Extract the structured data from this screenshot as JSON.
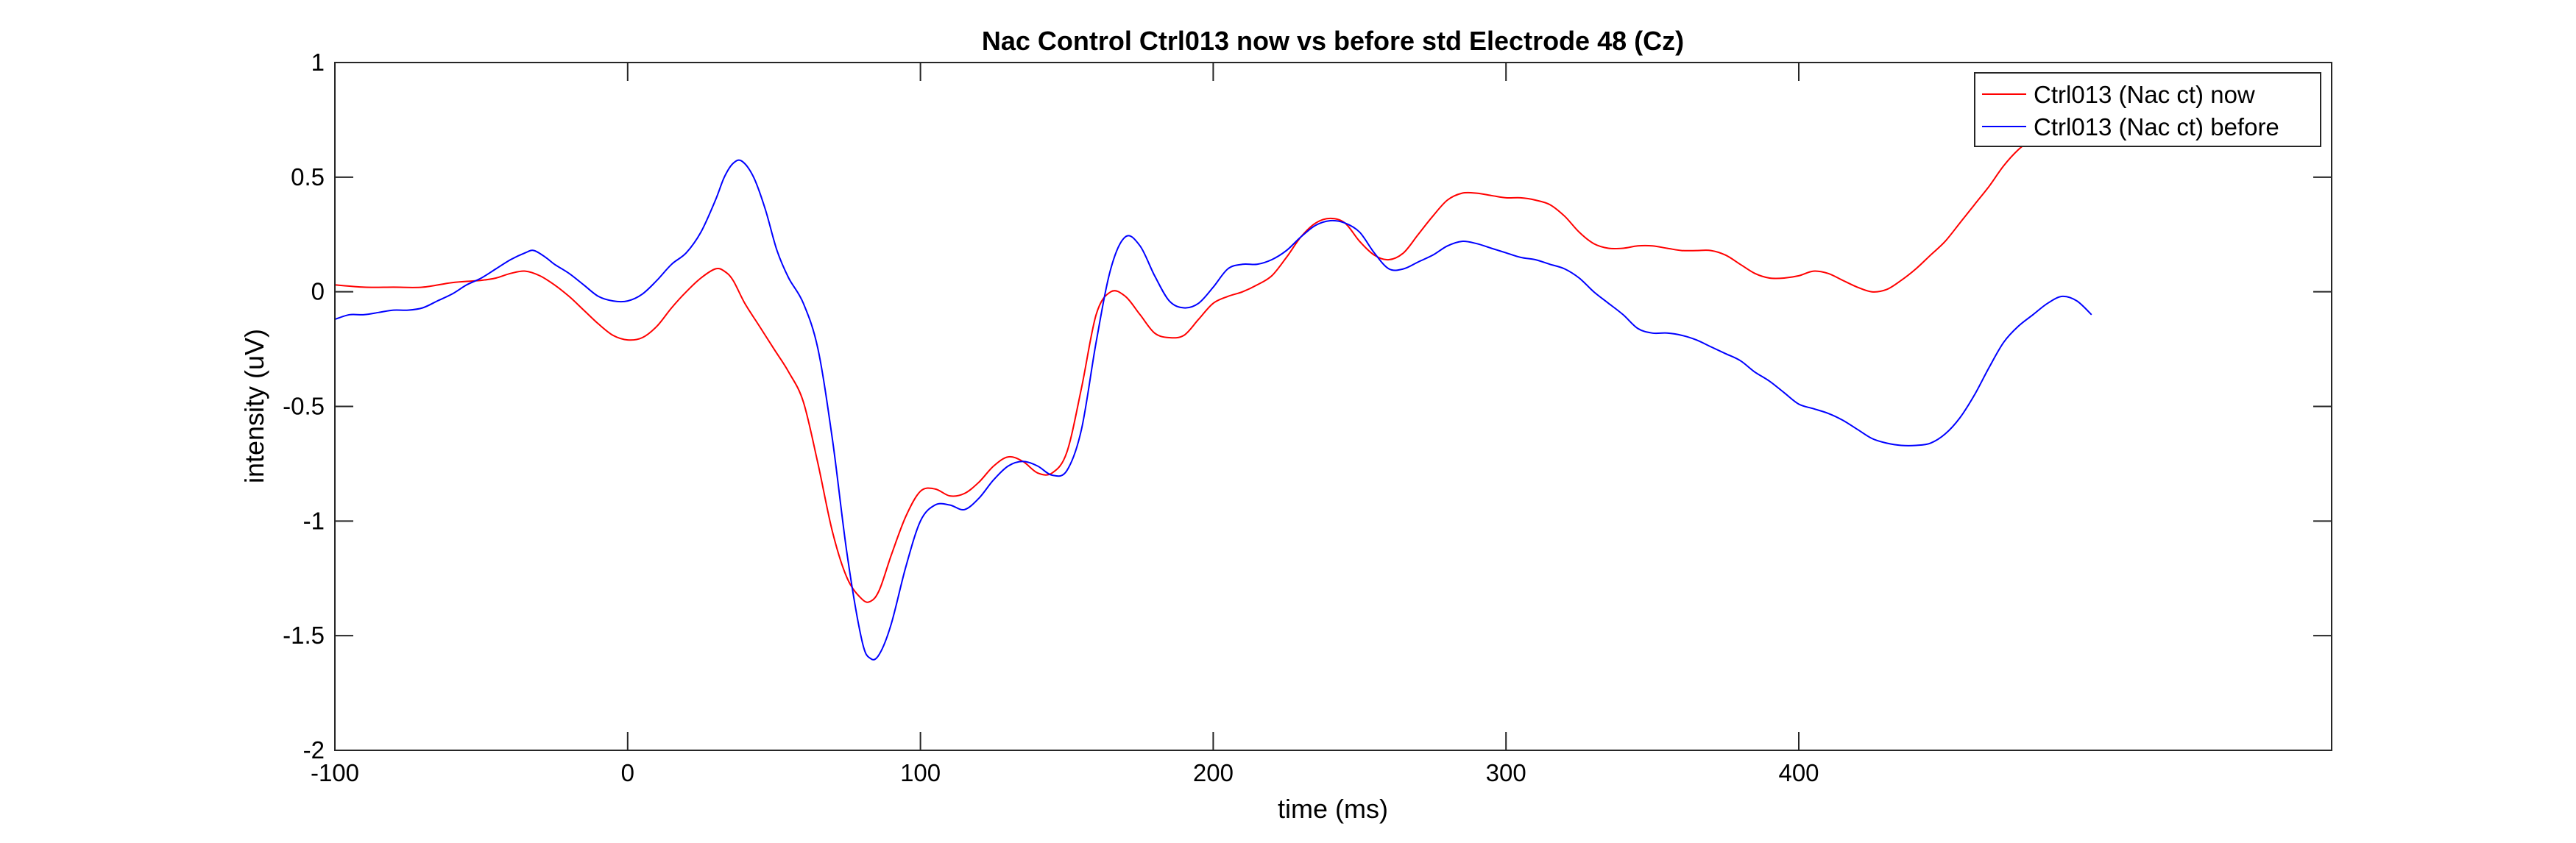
{
  "chart_data": {
    "type": "line",
    "title": "Nac Control Ctrl013 now vs before std Electrode 48 (Cz)",
    "xlabel": "time (ms)",
    "ylabel": "intensity (uV)",
    "xlim": [
      -100,
      582
    ],
    "ylim": [
      -2,
      1
    ],
    "xticks": [
      -100,
      0,
      100,
      200,
      300,
      400
    ],
    "xtick_labels": [
      "-100",
      "0",
      "100",
      "200",
      "300",
      "400"
    ],
    "yticks": [
      1,
      0.5,
      0,
      -0.5,
      -1,
      -1.5,
      -2
    ],
    "ytick_labels": [
      "1",
      "0.5",
      "0",
      "-0.5",
      "-1",
      "-1.5",
      "-2"
    ],
    "grid": false,
    "legend_position": "top-right",
    "series": [
      {
        "name": "Ctrl013 (Nac ct) now",
        "color": "#ff0000",
        "x": [
          -100,
          -90,
          -80,
          -70,
          -60,
          -50,
          -45,
          -40,
          -35,
          -30,
          -25,
          -20,
          -15,
          -10,
          -5,
          0,
          5,
          10,
          15,
          20,
          25,
          30,
          33,
          36,
          40,
          45,
          50,
          55,
          60,
          65,
          70,
          75,
          80,
          83,
          86,
          90,
          95,
          100,
          105,
          110,
          115,
          120,
          125,
          130,
          135,
          140,
          145,
          150,
          155,
          160,
          165,
          170,
          175,
          180,
          185,
          190,
          195,
          200,
          205,
          210,
          215,
          220,
          225,
          230,
          235,
          240,
          245,
          250,
          255,
          260,
          265,
          270,
          275,
          280,
          285,
          290,
          295,
          300,
          305,
          310,
          315,
          320,
          325,
          330,
          335,
          340,
          345,
          350,
          355,
          360,
          365,
          370,
          375,
          380,
          385,
          390,
          395,
          400,
          405,
          410,
          415,
          420,
          425,
          430,
          435,
          440,
          445,
          450,
          455,
          460,
          465,
          470,
          475,
          480
        ],
        "y": [
          0.03,
          0.02,
          0.02,
          0.02,
          0.04,
          0.05,
          0.06,
          0.08,
          0.09,
          0.07,
          0.03,
          -0.02,
          -0.08,
          -0.14,
          -0.19,
          -0.21,
          -0.2,
          -0.15,
          -0.07,
          0.0,
          0.06,
          0.1,
          0.09,
          0.05,
          -0.05,
          -0.15,
          -0.25,
          -0.35,
          -0.48,
          -0.75,
          -1.05,
          -1.25,
          -1.34,
          -1.35,
          -1.3,
          -1.15,
          -0.98,
          -0.87,
          -0.86,
          -0.89,
          -0.88,
          -0.83,
          -0.76,
          -0.72,
          -0.74,
          -0.79,
          -0.79,
          -0.7,
          -0.42,
          -0.1,
          0.0,
          -0.02,
          -0.1,
          -0.18,
          -0.2,
          -0.19,
          -0.12,
          -0.05,
          -0.02,
          0.0,
          0.03,
          0.07,
          0.15,
          0.24,
          0.3,
          0.32,
          0.3,
          0.22,
          0.16,
          0.14,
          0.17,
          0.25,
          0.33,
          0.4,
          0.43,
          0.43,
          0.42,
          0.41,
          0.41,
          0.4,
          0.38,
          0.33,
          0.26,
          0.21,
          0.19,
          0.19,
          0.2,
          0.2,
          0.19,
          0.18,
          0.18,
          0.18,
          0.16,
          0.12,
          0.08,
          0.06,
          0.06,
          0.07,
          0.09,
          0.08,
          0.05,
          0.02,
          0.0,
          0.01,
          0.05,
          0.1,
          0.16,
          0.22,
          0.3,
          0.38,
          0.46,
          0.55,
          0.62,
          0.67
        ]
      },
      {
        "name": "Ctrl013 (Nac ct) before",
        "color": "#0000ff",
        "x": [
          -100,
          -95,
          -90,
          -85,
          -80,
          -75,
          -70,
          -65,
          -60,
          -55,
          -50,
          -45,
          -40,
          -35,
          -32,
          -28,
          -25,
          -20,
          -15,
          -10,
          -5,
          0,
          5,
          10,
          15,
          20,
          25,
          30,
          33,
          36,
          39,
          43,
          47,
          51,
          55,
          60,
          65,
          70,
          75,
          80,
          83,
          86,
          90,
          95,
          100,
          105,
          110,
          115,
          120,
          125,
          130,
          135,
          140,
          145,
          150,
          155,
          160,
          165,
          170,
          175,
          180,
          185,
          190,
          195,
          200,
          205,
          210,
          215,
          220,
          225,
          230,
          235,
          240,
          245,
          250,
          255,
          260,
          265,
          270,
          275,
          280,
          285,
          290,
          295,
          300,
          305,
          310,
          315,
          320,
          325,
          330,
          335,
          340,
          345,
          350,
          355,
          360,
          365,
          370,
          375,
          380,
          385,
          390,
          395,
          400,
          405,
          410,
          415,
          420,
          425,
          430,
          435,
          440,
          445,
          450,
          455,
          460,
          465,
          470,
          475,
          480,
          485,
          490,
          495,
          500
        ],
        "y": [
          -0.12,
          -0.1,
          -0.1,
          -0.09,
          -0.08,
          -0.08,
          -0.07,
          -0.04,
          -0.01,
          0.03,
          0.06,
          0.1,
          0.14,
          0.17,
          0.18,
          0.15,
          0.12,
          0.08,
          0.03,
          -0.02,
          -0.04,
          -0.04,
          -0.01,
          0.05,
          0.12,
          0.17,
          0.26,
          0.4,
          0.5,
          0.56,
          0.57,
          0.5,
          0.36,
          0.18,
          0.06,
          -0.05,
          -0.25,
          -0.65,
          -1.15,
          -1.52,
          -1.6,
          -1.58,
          -1.45,
          -1.2,
          -1.0,
          -0.93,
          -0.93,
          -0.95,
          -0.9,
          -0.82,
          -0.76,
          -0.74,
          -0.76,
          -0.8,
          -0.78,
          -0.6,
          -0.22,
          0.1,
          0.24,
          0.2,
          0.07,
          -0.04,
          -0.07,
          -0.05,
          0.02,
          0.1,
          0.12,
          0.12,
          0.14,
          0.18,
          0.24,
          0.29,
          0.31,
          0.3,
          0.26,
          0.17,
          0.1,
          0.1,
          0.13,
          0.16,
          0.2,
          0.22,
          0.21,
          0.19,
          0.17,
          0.15,
          0.14,
          0.12,
          0.1,
          0.06,
          0.0,
          -0.05,
          -0.1,
          -0.16,
          -0.18,
          -0.18,
          -0.19,
          -0.21,
          -0.24,
          -0.27,
          -0.3,
          -0.35,
          -0.39,
          -0.44,
          -0.49,
          -0.51,
          -0.53,
          -0.56,
          -0.6,
          -0.64,
          -0.66,
          -0.67,
          -0.67,
          -0.66,
          -0.62,
          -0.55,
          -0.45,
          -0.33,
          -0.22,
          -0.15,
          -0.1,
          -0.05,
          -0.02,
          -0.04,
          -0.1
        ]
      }
    ]
  }
}
